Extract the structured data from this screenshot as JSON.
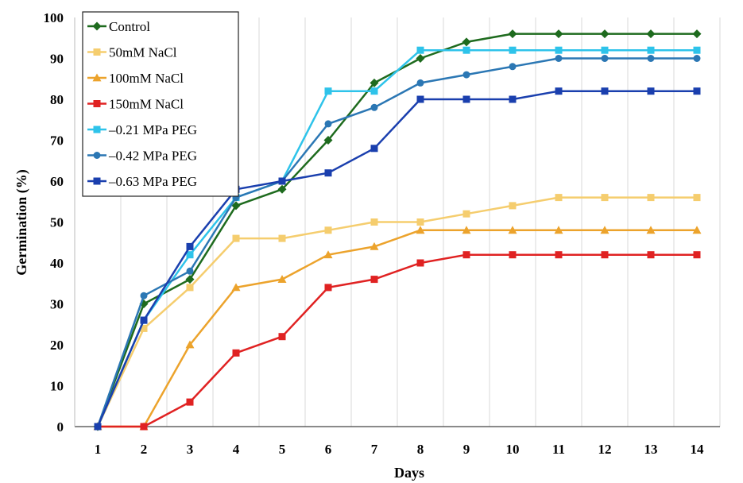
{
  "chart_data": {
    "type": "line",
    "title": "",
    "xlabel": "Days",
    "ylabel": "Germination (%)",
    "x": [
      1,
      2,
      3,
      4,
      5,
      6,
      7,
      8,
      9,
      10,
      11,
      12,
      13,
      14
    ],
    "ylim": [
      0,
      100
    ],
    "yticks": [
      0,
      10,
      20,
      30,
      40,
      50,
      60,
      70,
      80,
      90,
      100
    ],
    "grid": "vertical",
    "legend_position": "top-left",
    "series": [
      {
        "name": "Control",
        "color": "#1e6b1e",
        "marker": "diamond",
        "values": [
          0,
          30,
          36,
          54,
          58,
          70,
          84,
          90,
          94,
          96,
          96,
          96,
          96,
          96
        ]
      },
      {
        "name": "50mM NaCl",
        "color": "#f5cd6e",
        "marker": "square",
        "values": [
          0,
          24,
          34,
          46,
          46,
          48,
          50,
          50,
          52,
          54,
          56,
          56,
          56,
          56
        ]
      },
      {
        "name": "100mM NaCl",
        "color": "#eca32c",
        "marker": "triangle",
        "values": [
          0,
          0,
          20,
          34,
          36,
          42,
          44,
          48,
          48,
          48,
          48,
          48,
          48,
          48
        ]
      },
      {
        "name": "150mM NaCl",
        "color": "#e02222",
        "marker": "square",
        "values": [
          0,
          0,
          6,
          18,
          22,
          34,
          36,
          40,
          42,
          42,
          42,
          42,
          42,
          42
        ]
      },
      {
        "name": "–0.21 MPa PEG",
        "color": "#2ec3ea",
        "marker": "square",
        "values": [
          0,
          26,
          42,
          56,
          60,
          82,
          82,
          92,
          92,
          92,
          92,
          92,
          92,
          92
        ]
      },
      {
        "name": "–0.42 MPa PEG",
        "color": "#2b77b4",
        "marker": "circle",
        "values": [
          0,
          32,
          38,
          56,
          60,
          74,
          78,
          84,
          86,
          88,
          90,
          90,
          90,
          90
        ]
      },
      {
        "name": "–0.63 MPa PEG",
        "color": "#1a3fae",
        "marker": "square",
        "values": [
          0,
          26,
          44,
          58,
          60,
          62,
          68,
          80,
          80,
          80,
          82,
          82,
          82,
          82
        ]
      }
    ]
  }
}
